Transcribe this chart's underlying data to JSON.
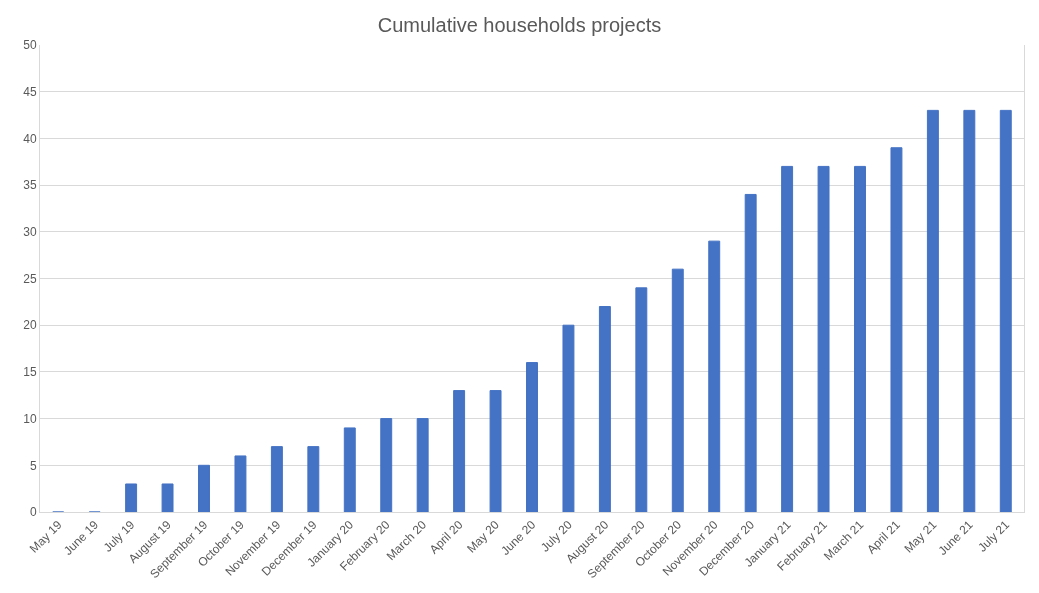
{
  "chart_data": {
    "type": "bar",
    "title": "Cumulative households projects",
    "categories": [
      "May 19",
      "June 19",
      "July 19",
      "August 19",
      "September 19",
      "October 19",
      "November 19",
      "December 19",
      "January 20",
      "February 20",
      "March 20",
      "April 20",
      "May 20",
      "June 20",
      "July 20",
      "August 20",
      "September 20",
      "October 20",
      "November 20",
      "December 20",
      "January 21",
      "February 21",
      "March 21",
      "April 21",
      "May 21",
      "June 21",
      "July 21"
    ],
    "values": [
      0,
      0,
      3,
      3,
      5,
      6,
      7,
      7,
      9,
      10,
      10,
      13,
      13,
      16,
      20,
      22,
      24,
      26,
      29,
      34,
      37,
      37,
      37,
      39,
      43,
      43,
      43
    ],
    "color": "#4472c4",
    "ylim": [
      0,
      50
    ],
    "yticks": [
      0,
      5,
      10,
      15,
      20,
      25,
      30,
      35,
      40,
      45,
      50
    ],
    "grid": "y"
  }
}
